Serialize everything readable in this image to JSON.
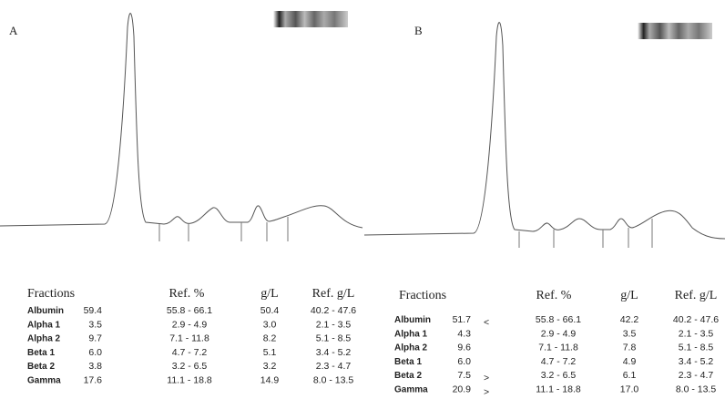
{
  "panels": [
    {
      "label": "A",
      "table": {
        "header": [
          "Fractions",
          "Ref. %",
          "g/L",
          "Ref. g/L"
        ],
        "rows": [
          {
            "name": "Albumin",
            "pct": "59.4",
            "ref_pct": "55.8 - 66.1",
            "gl": "50.4",
            "ref_gl": "40.2 - 47.6"
          },
          {
            "name": "Alpha 1",
            "pct": "3.5",
            "ref_pct": "2.9 - 4.9",
            "gl": "3.0",
            "ref_gl": "2.1 - 3.5"
          },
          {
            "name": "Alpha 2",
            "pct": "9.7",
            "ref_pct": "7.1 - 11.8",
            "gl": "8.2",
            "ref_gl": "5.1 - 8.5"
          },
          {
            "name": "Beta 1",
            "pct": "6.0",
            "ref_pct": "4.7 - 7.2",
            "gl": "5.1",
            "ref_gl": "3.4 - 5.2"
          },
          {
            "name": "Beta 2",
            "pct": "3.8",
            "ref_pct": "3.2 - 6.5",
            "gl": "3.2",
            "ref_gl": "2.3 - 4.7"
          },
          {
            "name": "Gamma",
            "pct": "17.6",
            "ref_pct": "11.1 - 18.8",
            "gl": "14.9",
            "ref_gl": "8.0 - 13.5"
          }
        ]
      }
    },
    {
      "label": "B",
      "table": {
        "header": [
          "Fractions",
          "Ref. %",
          "g/L",
          "Ref. g/L"
        ],
        "rows": [
          {
            "name": "Albumin",
            "pct": "51.7",
            "flag": "<",
            "ref_pct": "55.8 - 66.1",
            "gl": "42.2",
            "ref_gl": "40.2 - 47.6"
          },
          {
            "name": "Alpha 1",
            "pct": "4.3",
            "ref_pct": "2.9 - 4.9",
            "gl": "3.5",
            "ref_gl": "2.1 - 3.5"
          },
          {
            "name": "Alpha 2",
            "pct": "9.6",
            "ref_pct": "7.1 - 11.8",
            "gl": "7.8",
            "ref_gl": "5.1 - 8.5"
          },
          {
            "name": "Beta 1",
            "pct": "6.0",
            "ref_pct": "4.7 - 7.2",
            "gl": "4.9",
            "ref_gl": "3.4 - 5.2"
          },
          {
            "name": "Beta 2",
            "pct": "7.5",
            "flag": ">",
            "ref_pct": "3.2 - 6.5",
            "gl": "6.1",
            "ref_gl": "2.3 - 4.7"
          },
          {
            "name": "Gamma",
            "pct": "20.9",
            "flag": ">",
            "ref_pct": "11.1 - 18.8",
            "gl": "17.0",
            "ref_gl": "8.0 - 13.5"
          }
        ]
      }
    }
  ]
}
